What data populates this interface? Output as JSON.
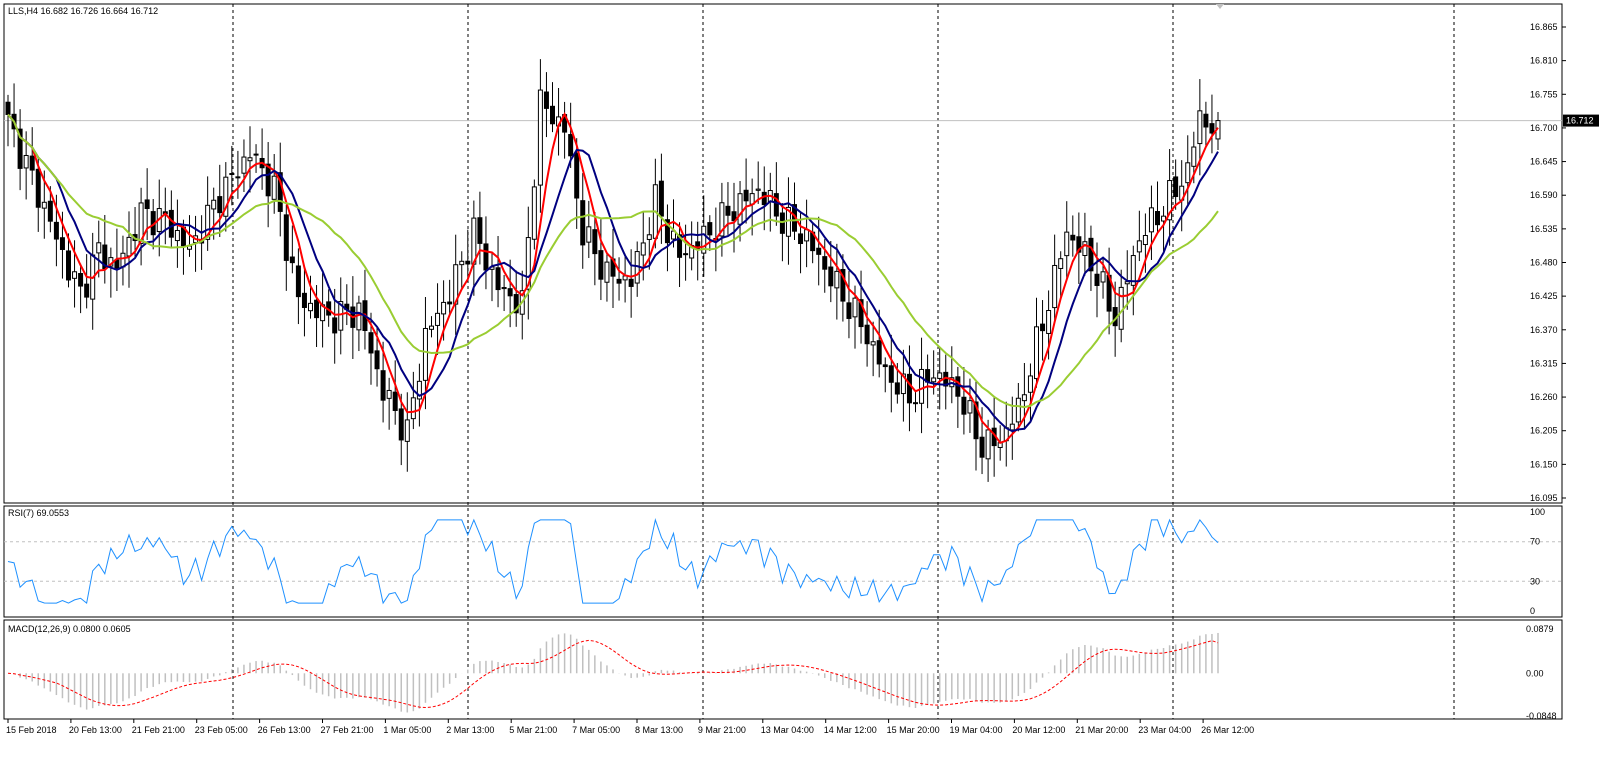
{
  "main_header": "LLS,H4  16.682 16.726 16.664 16.712",
  "rsi_header": "RSI(7) 69.0553",
  "macd_header": "MACD(12,26,9) 0.0800 0.0605",
  "current_price_label": "16.712",
  "colors": {
    "bull": "#ffffff",
    "bear": "#000000",
    "wick": "#000000",
    "ma_fast": "#ff0000",
    "ma_mid": "#000080",
    "ma_slow": "#9acd32",
    "rsi": "#1e90ff",
    "macd_hist": "#c0c0c0",
    "macd_signal": "#ff0000",
    "grid_vertical": "#000000",
    "price_line": "#c0c0c0"
  },
  "x_labels": [
    "15 Feb 2018",
    "20 Feb 13:00",
    "21 Feb 21:00",
    "23 Feb 05:00",
    "26 Feb 13:00",
    "27 Feb 21:00",
    "1 Mar 05:00",
    "2 Mar 13:00",
    "5 Mar 21:00",
    "7 Mar 05:00",
    "8 Mar 13:00",
    "9 Mar 21:00",
    "13 Mar 04:00",
    "14 Mar 12:00",
    "15 Mar 20:00",
    "19 Mar 04:00",
    "20 Mar 12:00",
    "21 Mar 20:00",
    "23 Mar 04:00",
    "26 Mar 12:00"
  ],
  "chart_data": [
    {
      "type": "candlestick",
      "title": "LLS,H4",
      "symbol": "LLS",
      "timeframe": "H4",
      "last_ohlc": {
        "open": 16.682,
        "high": 16.726,
        "low": 16.664,
        "close": 16.712
      },
      "ylim": [
        16.095,
        16.865
      ],
      "y_ticks": [
        "16.865",
        "16.810",
        "16.755",
        "16.700",
        "16.645",
        "16.590",
        "16.535",
        "16.480",
        "16.425",
        "16.370",
        "16.315",
        "16.260",
        "16.205",
        "16.150",
        "16.095"
      ],
      "current_price": 16.712,
      "x_labels": [
        "15 Feb 2018",
        "20 Feb 13:00",
        "21 Feb 21:00",
        "23 Feb 05:00",
        "26 Feb 13:00",
        "27 Feb 21:00",
        "1 Mar 05:00",
        "2 Mar 13:00",
        "5 Mar 21:00",
        "7 Mar 05:00",
        "8 Mar 13:00",
        "9 Mar 21:00",
        "13 Mar 04:00",
        "14 Mar 12:00",
        "15 Mar 20:00",
        "19 Mar 04:00",
        "20 Mar 12:00",
        "21 Mar 20:00",
        "23 Mar 04:00",
        "26 Mar 12:00"
      ],
      "close_anchors": [
        [
          0,
          16.71
        ],
        [
          6,
          16.57
        ],
        [
          10,
          16.47
        ],
        [
          12,
          16.43
        ],
        [
          15,
          16.5
        ],
        [
          18,
          16.47
        ],
        [
          22,
          16.56
        ],
        [
          26,
          16.55
        ],
        [
          30,
          16.5
        ],
        [
          35,
          16.59
        ],
        [
          40,
          16.66
        ],
        [
          44,
          16.6
        ],
        [
          48,
          16.42
        ],
        [
          53,
          16.39
        ],
        [
          58,
          16.4
        ],
        [
          62,
          16.27
        ],
        [
          66,
          16.2
        ],
        [
          69,
          16.36
        ],
        [
          73,
          16.43
        ],
        [
          77,
          16.53
        ],
        [
          81,
          16.44
        ],
        [
          85,
          16.41
        ],
        [
          88,
          16.74
        ],
        [
          92,
          16.7
        ],
        [
          95,
          16.53
        ],
        [
          99,
          16.46
        ],
        [
          103,
          16.45
        ],
        [
          107,
          16.58
        ],
        [
          111,
          16.49
        ],
        [
          115,
          16.52
        ],
        [
          119,
          16.56
        ],
        [
          124,
          16.6
        ],
        [
          128,
          16.55
        ],
        [
          132,
          16.52
        ],
        [
          137,
          16.44
        ],
        [
          141,
          16.38
        ],
        [
          145,
          16.3
        ],
        [
          149,
          16.26
        ],
        [
          153,
          16.3
        ],
        [
          157,
          16.27
        ],
        [
          161,
          16.18
        ],
        [
          164,
          16.19
        ],
        [
          167,
          16.24
        ],
        [
          171,
          16.38
        ],
        [
          175,
          16.53
        ],
        [
          179,
          16.48
        ],
        [
          183,
          16.39
        ],
        [
          187,
          16.52
        ],
        [
          191,
          16.57
        ],
        [
          195,
          16.63
        ],
        [
          197,
          16.72
        ],
        [
          199,
          16.7
        ],
        [
          200,
          16.712
        ]
      ],
      "overlays": [
        "moving average (red)",
        "moving average (navy)",
        "moving average (yellow-green)"
      ]
    },
    {
      "type": "line",
      "title": "RSI(7)",
      "last_value": 69.0553,
      "ylim": [
        0,
        100
      ],
      "y_ticks": [
        "100",
        "70",
        "30",
        "0"
      ],
      "levels": [
        70,
        30
      ]
    },
    {
      "type": "bar",
      "title": "MACD(12,26,9)",
      "macd": 0.08,
      "signal": 0.0605,
      "ylim": [
        -0.0848,
        0.0879
      ],
      "y_ticks": [
        "0.0879",
        "0.00",
        "-0.0848"
      ]
    }
  ]
}
